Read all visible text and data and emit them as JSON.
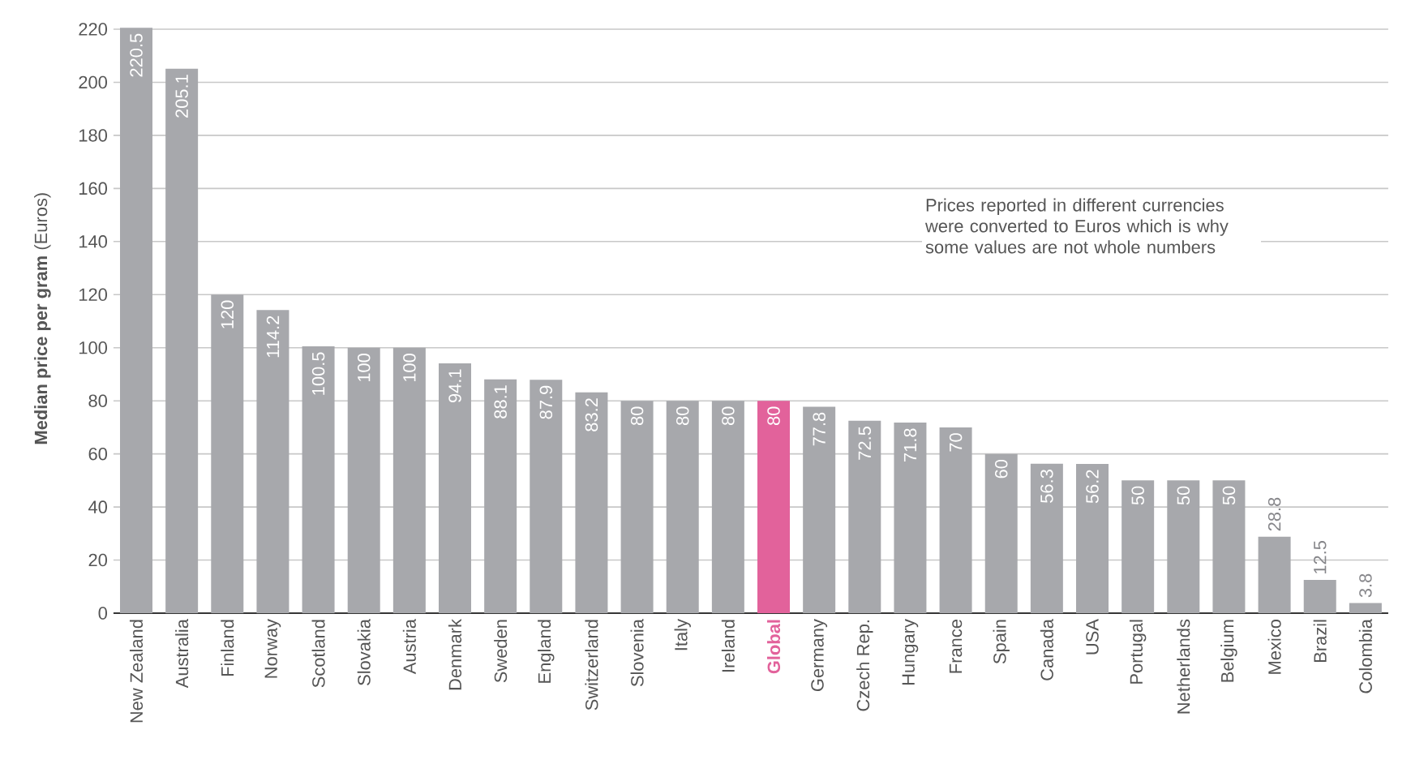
{
  "chart_data": {
    "type": "bar",
    "ylabel": "**Median price per gram** (Euros)",
    "categories": [
      "New Zealand",
      "Australia",
      "Finland",
      "Norway",
      "Scotland",
      "Slovakia",
      "Austria",
      "Denmark",
      "Sweden",
      "England",
      "Switzerland",
      "Slovenia",
      "Italy",
      "Ireland",
      "Global",
      "Germany",
      "Czech Rep.",
      "Hungary",
      "France",
      "Spain",
      "Canada",
      "USA",
      "Portugal",
      "Netherlands",
      "Belgium",
      "Mexico",
      "Brazil",
      "Colombia"
    ],
    "values": [
      220.5,
      205.1,
      120,
      114.2,
      100.5,
      100,
      100,
      94.1,
      88.1,
      87.9,
      83.2,
      80,
      80,
      80,
      80,
      77.8,
      72.5,
      71.8,
      70,
      60,
      56.3,
      56.2,
      50,
      50,
      50,
      28.8,
      12.5,
      3.8
    ],
    "colors": [
      "#a7a8ac",
      "#a7a8ac",
      "#a7a8ac",
      "#a7a8ac",
      "#a7a8ac",
      "#a7a8ac",
      "#a7a8ac",
      "#a7a8ac",
      "#a7a8ac",
      "#a7a8ac",
      "#a7a8ac",
      "#a7a8ac",
      "#a7a8ac",
      "#a7a8ac",
      "#e2629b",
      "#a7a8ac",
      "#a7a8ac",
      "#a7a8ac",
      "#a7a8ac",
      "#a7a8ac",
      "#a7a8ac",
      "#a7a8ac",
      "#a7a8ac",
      "#a7a8ac",
      "#a7a8ac",
      "#a7a8ac",
      "#a7a8ac",
      "#a7a8ac"
    ],
    "ylim": [
      0,
      222
    ],
    "yticks": [
      0,
      20,
      40,
      60,
      80,
      100,
      120,
      140,
      160,
      180,
      200,
      220
    ],
    "grid": "y",
    "data_labels": true,
    "annotations": [
      "Prices reported in different currencies were converted to Euros which is why some values are not whole numbers"
    ]
  }
}
